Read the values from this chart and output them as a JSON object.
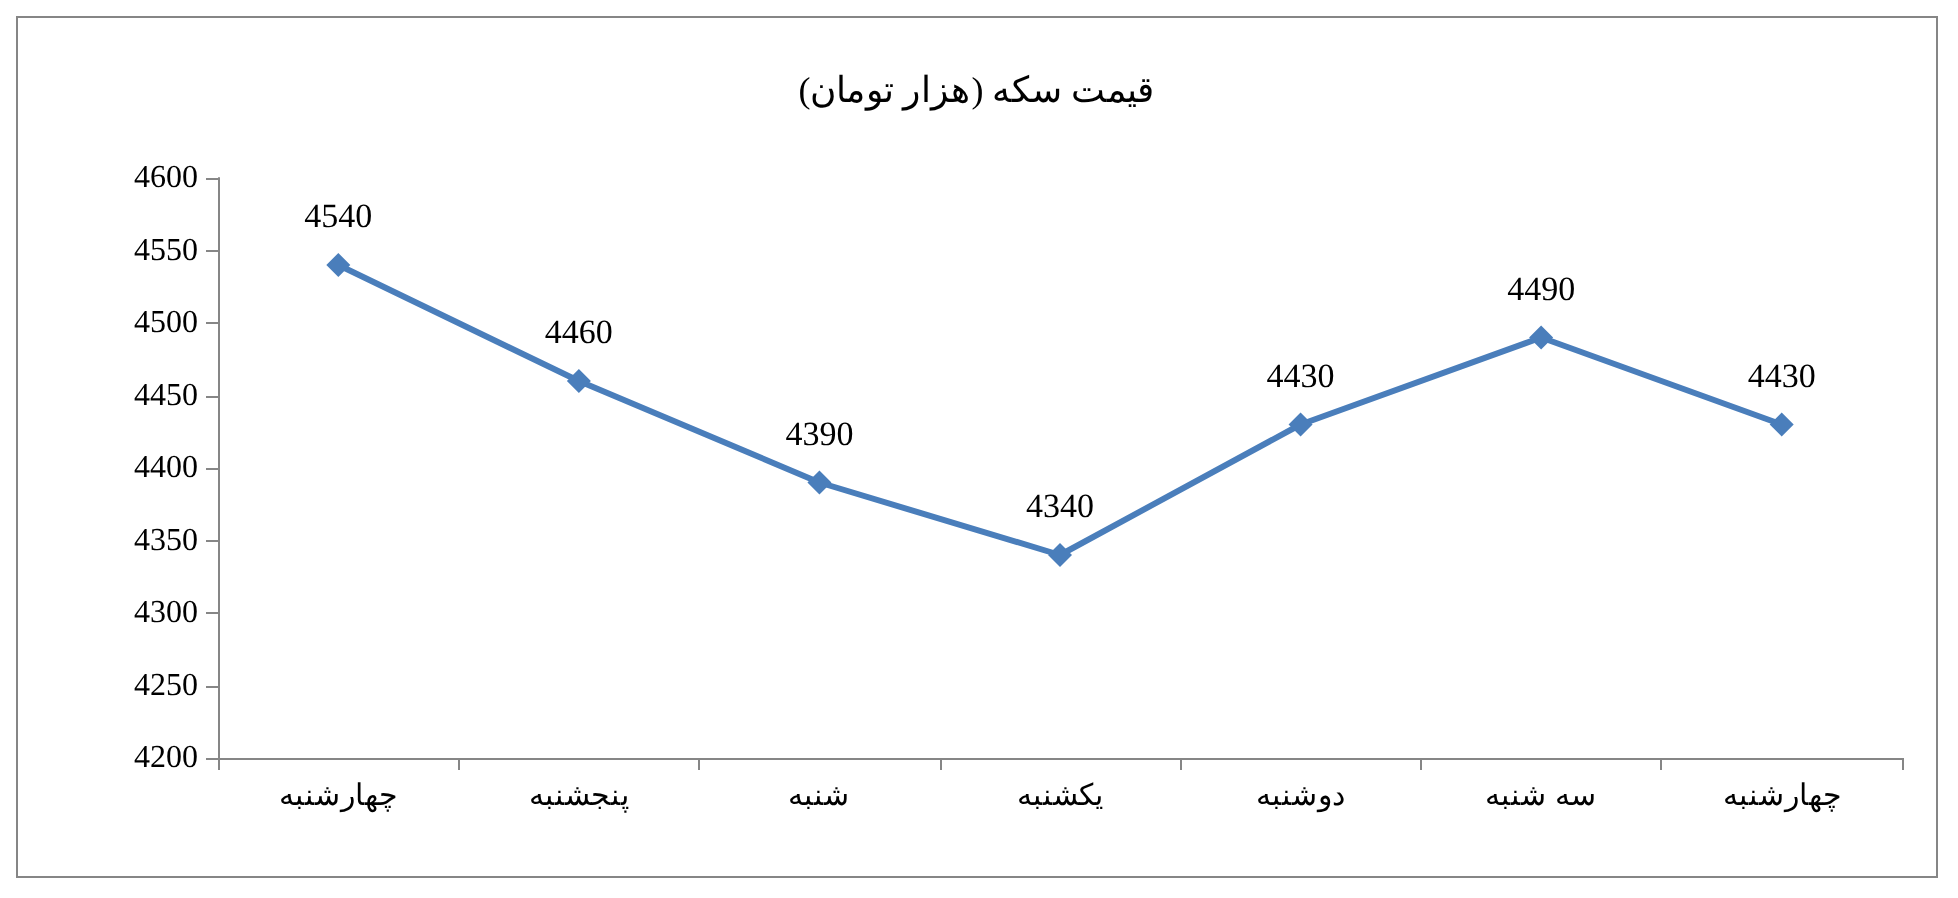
{
  "chart_data": {
    "type": "line",
    "title": "قیمت سکه (هزار تومان)",
    "categories": [
      "چهارشنبه",
      "پنجشنبه",
      "شنبه",
      "یکشنبه",
      "دوشنبه",
      "سه شنبه",
      "چهارشنبه"
    ],
    "series": [
      {
        "color": "#4a7ebb",
        "values": [
          4540,
          4460,
          4390,
          4340,
          4430,
          4490,
          4430
        ]
      }
    ],
    "ylim": [
      4200,
      4600
    ],
    "yticks": [
      4200,
      4250,
      4300,
      4350,
      4400,
      4450,
      4500,
      4550,
      4600
    ],
    "grid": false,
    "marker": "diamond",
    "line_style": "solid",
    "data_labels": true
  }
}
